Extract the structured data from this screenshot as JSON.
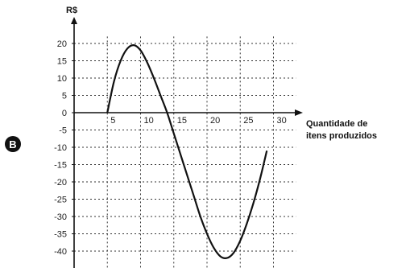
{
  "option_letter": "B",
  "chart_data": {
    "type": "line",
    "ylabel": "R$",
    "xlabel_line1": "Quantidade de",
    "xlabel_line2": "itens produzidos",
    "x_ticks": [
      5,
      10,
      15,
      20,
      25,
      30
    ],
    "y_ticks": [
      20,
      15,
      10,
      5,
      0,
      -5,
      -10,
      -15,
      -20,
      -25,
      -30,
      -35,
      -40
    ],
    "xlim": [
      0,
      33
    ],
    "ylim": [
      -42,
      22
    ],
    "grid": true,
    "series": [
      {
        "x": [
          5,
          6,
          7,
          8,
          9,
          10,
          11,
          12,
          13,
          14,
          15,
          16,
          17,
          18,
          19,
          20,
          21,
          22,
          23,
          24,
          25,
          26,
          27,
          28,
          29
        ],
        "y": [
          0,
          9,
          15,
          18.5,
          19.5,
          18,
          14.5,
          10,
          5,
          0,
          -6,
          -12,
          -18,
          -24,
          -30,
          -35,
          -39,
          -41.5,
          -42,
          -40.5,
          -37,
          -32,
          -26,
          -19,
          -11
        ]
      }
    ]
  }
}
